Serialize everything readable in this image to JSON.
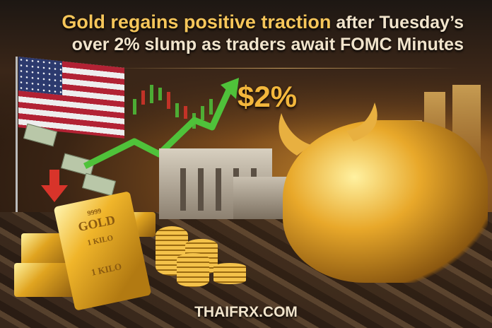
{
  "headline": {
    "highlight": "Gold regains positive traction",
    "line1_rest": "after Tuesday’s",
    "line2": "over 2% slump as traders await FOMC Minutes"
  },
  "badge": "$2%",
  "gold_bar": {
    "purity": "9999",
    "label": "GOLD",
    "weight1": "1 KILO",
    "weight2": "1 KILO"
  },
  "brand": "THAIFRX.COM",
  "colors": {
    "gold": "#f6c65a",
    "text": "#f1e4cc",
    "up_arrow": "#4fc23a",
    "down_arrow": "#d8342a"
  }
}
